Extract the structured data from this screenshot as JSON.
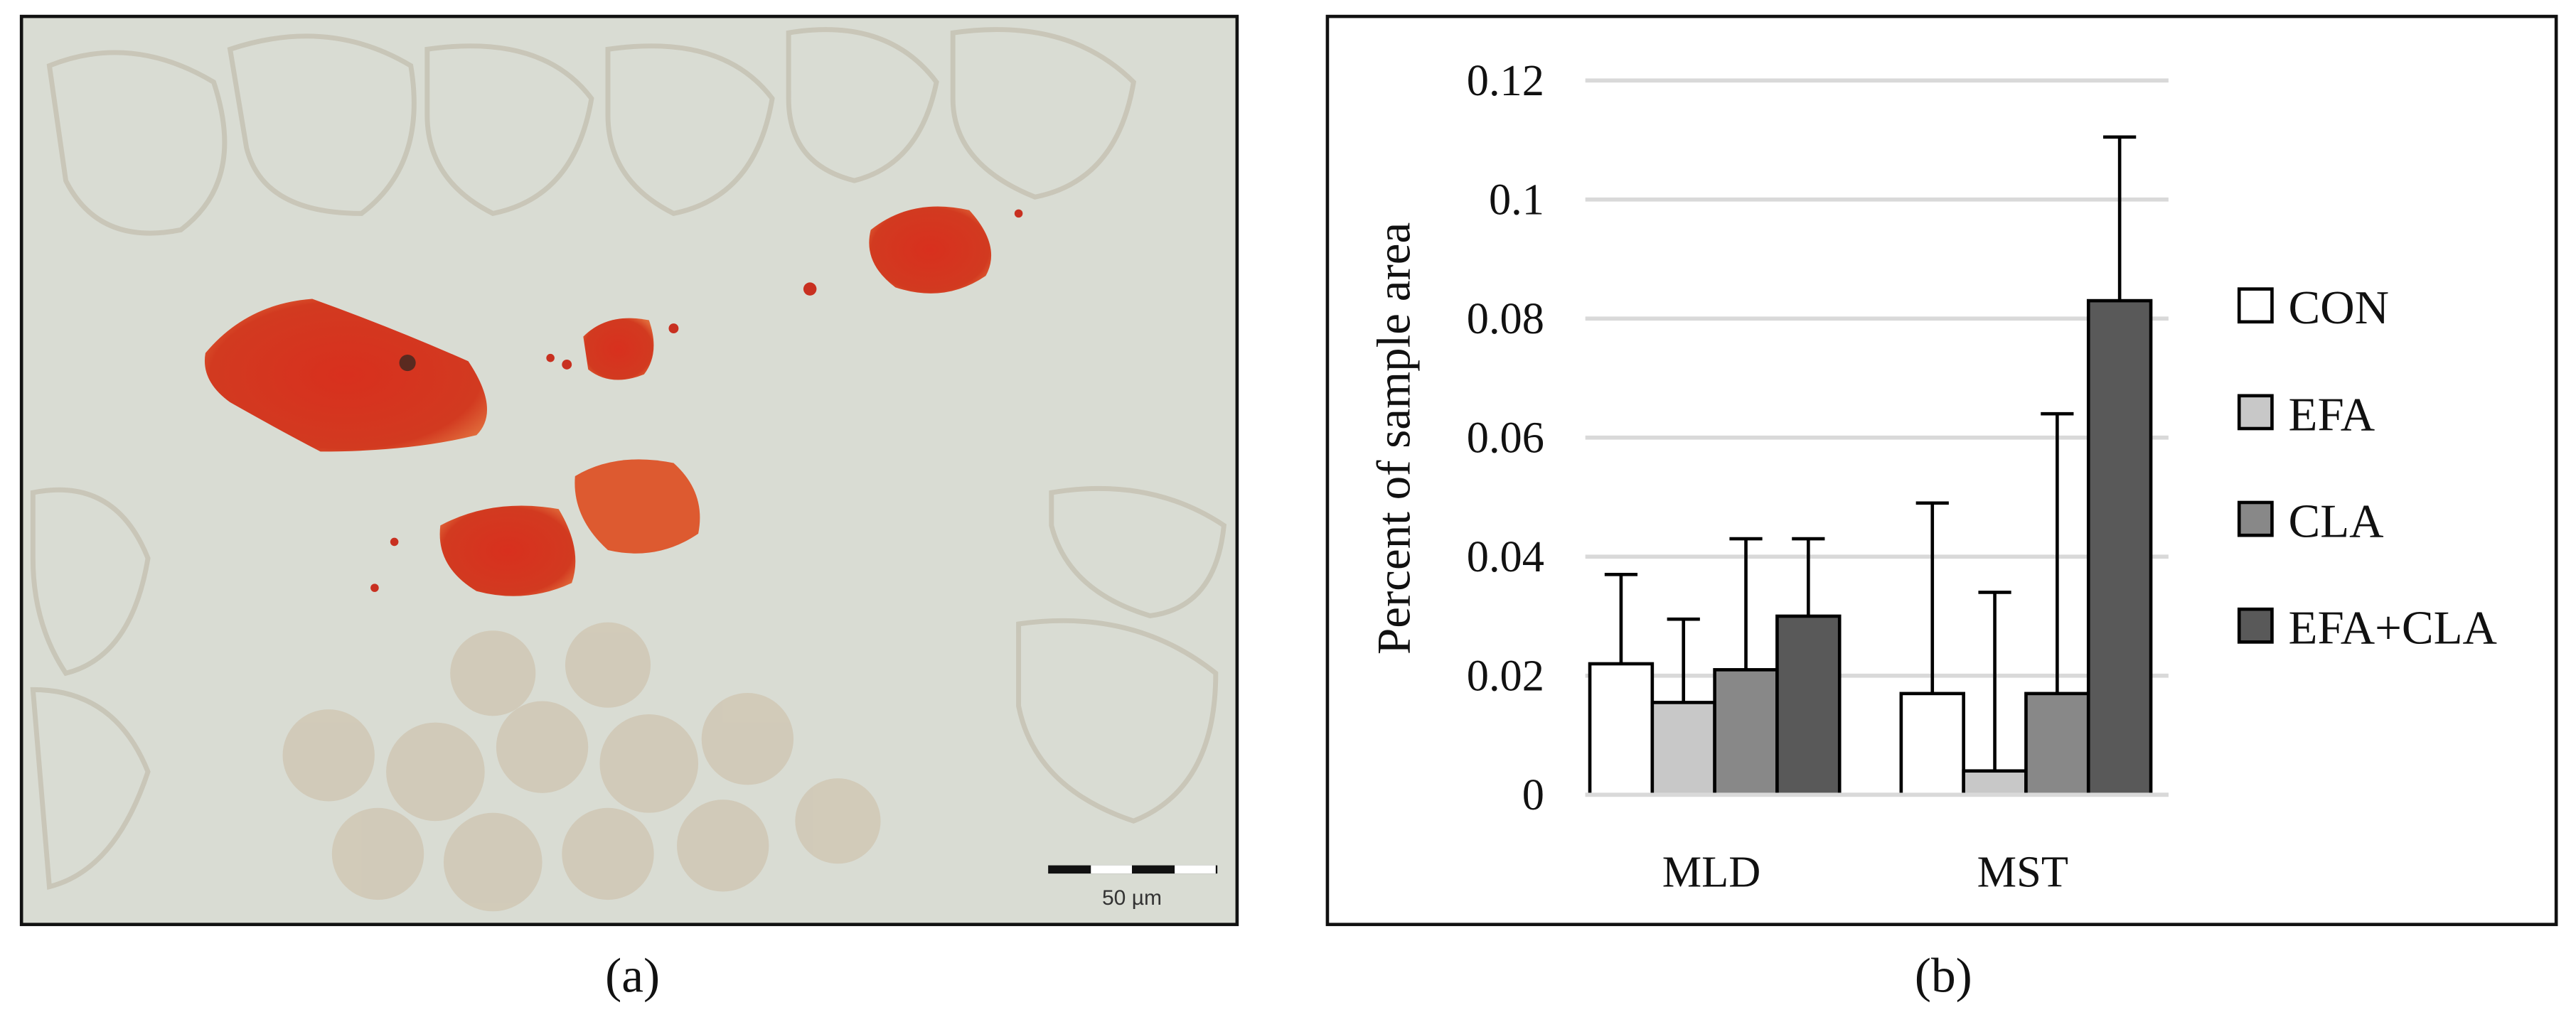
{
  "figure_a": {
    "scale_bar": "50 µm",
    "caption": "(a)"
  },
  "figure_b": {
    "caption": "(b)"
  },
  "chart_data": {
    "type": "bar",
    "y_label": "Percent of sample area",
    "categories": [
      "MLD",
      "MST"
    ],
    "series": [
      {
        "name": "CON",
        "color": "#ffffff",
        "values": [
          0.022,
          0.017
        ],
        "errors": [
          0.015,
          0.032
        ]
      },
      {
        "name": "EFA",
        "color": "#c8c8c8",
        "values": [
          0.0155,
          0.004
        ],
        "errors": [
          0.014,
          0.03
        ]
      },
      {
        "name": "CLA",
        "color": "#888888",
        "values": [
          0.021,
          0.017
        ],
        "errors": [
          0.022,
          0.047
        ]
      },
      {
        "name": "EFA+CLA",
        "color": "#595959",
        "values": [
          0.03,
          0.083
        ],
        "errors": [
          0.013,
          0.0275
        ]
      }
    ],
    "ylim": [
      0,
      0.12
    ],
    "yticks": [
      0,
      0.02,
      0.04,
      0.06,
      0.08,
      0.1,
      0.12
    ],
    "grid": true,
    "legend": "right"
  }
}
